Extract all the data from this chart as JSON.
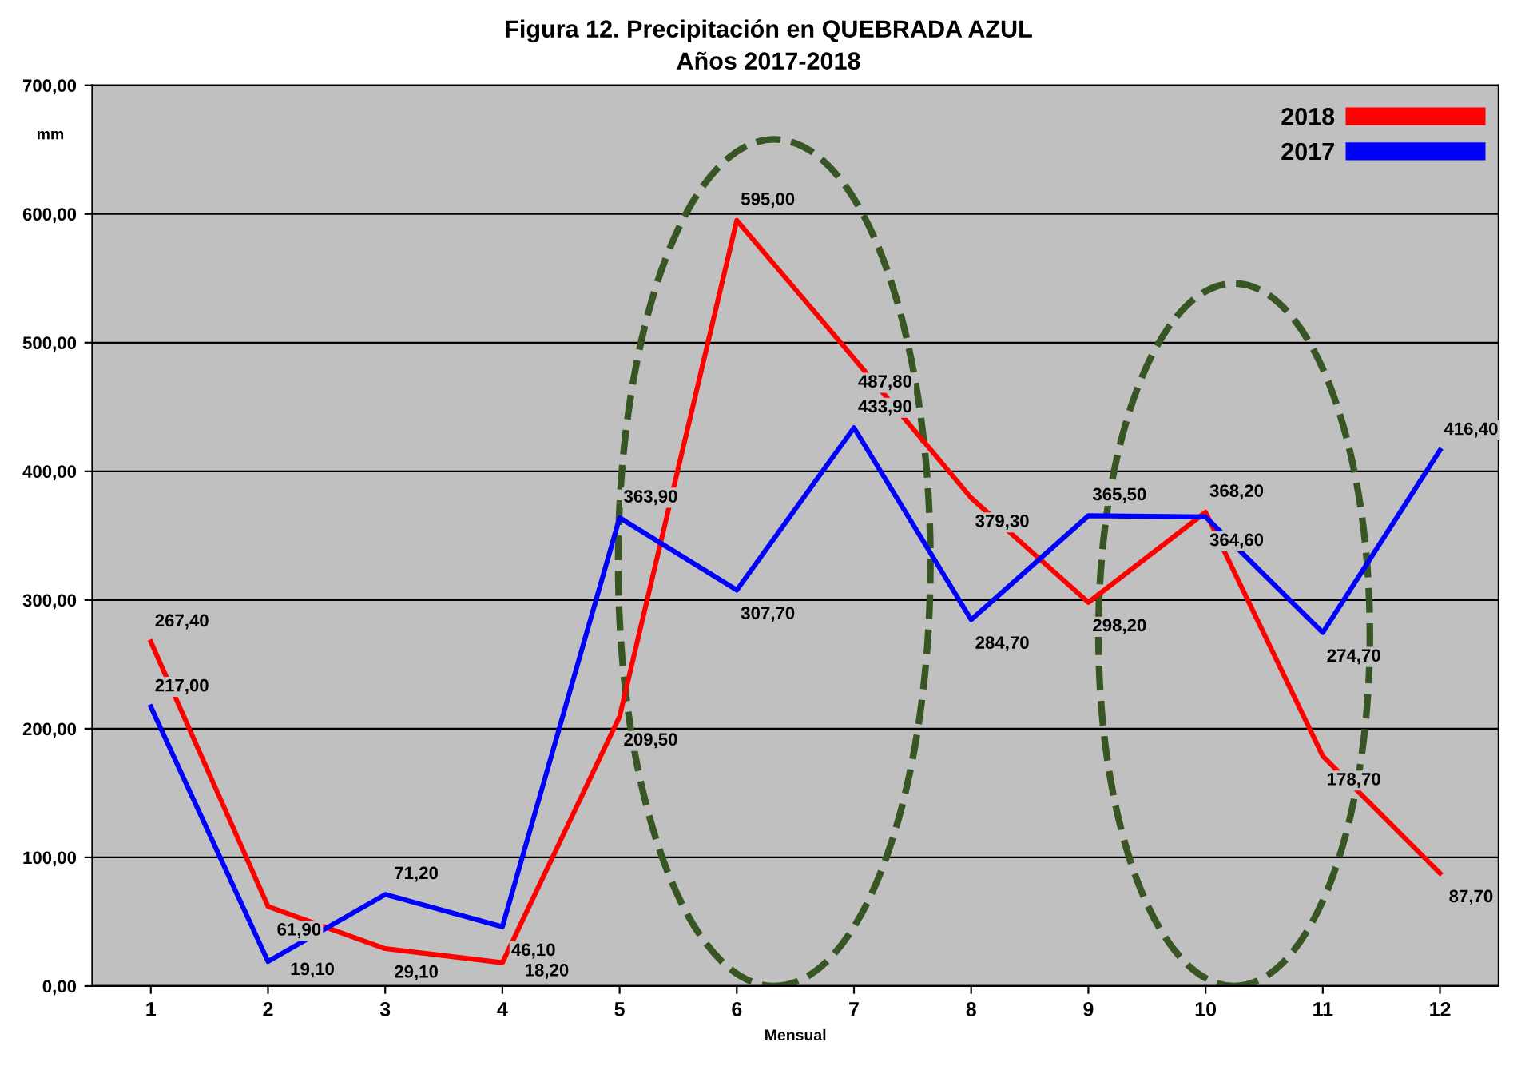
{
  "chart_data": {
    "type": "line",
    "title": "Figura 12. Precipitación en QUEBRADA AZUL",
    "subtitle": "Años 2017-2018",
    "xlabel": "Mensual",
    "ylabel": "mm",
    "categories": [
      "1",
      "2",
      "3",
      "4",
      "5",
      "6",
      "7",
      "8",
      "9",
      "10",
      "11",
      "12"
    ],
    "series": [
      {
        "name": "2018",
        "color": "#ff0000",
        "values": [
          267.4,
          61.9,
          29.1,
          18.2,
          209.5,
          595.0,
          487.8,
          379.3,
          298.2,
          368.2,
          178.7,
          87.7
        ],
        "value_labels": [
          "267,40",
          "61,90",
          "29,10",
          "18,20",
          "209,50",
          "595,00",
          "487,80",
          "379,30",
          "298,20",
          "368,20",
          "178,70",
          "87,70"
        ]
      },
      {
        "name": "2017",
        "color": "#0000ff",
        "values": [
          217.0,
          19.1,
          71.2,
          46.1,
          363.9,
          307.7,
          433.9,
          284.7,
          365.5,
          364.6,
          274.7,
          416.4
        ],
        "value_labels": [
          "217,00",
          "19,10",
          "71,20",
          "46,10",
          "363,90",
          "307,70",
          "433,90",
          "284,70",
          "365,50",
          "364,60",
          "274,70",
          "416,40"
        ]
      }
    ],
    "ylim": [
      0,
      700
    ],
    "yticks": [
      {
        "value": 0,
        "label": "0,00"
      },
      {
        "value": 100,
        "label": "100,00"
      },
      {
        "value": 200,
        "label": "200,00"
      },
      {
        "value": 300,
        "label": "300,00"
      },
      {
        "value": 400,
        "label": "400,00"
      },
      {
        "value": 500,
        "label": "500,00"
      },
      {
        "value": 600,
        "label": "600,00"
      },
      {
        "value": 700,
        "label": "700,00"
      }
    ],
    "grid": "y",
    "legend": "top right",
    "marker": "none",
    "line_style": "solid"
  }
}
